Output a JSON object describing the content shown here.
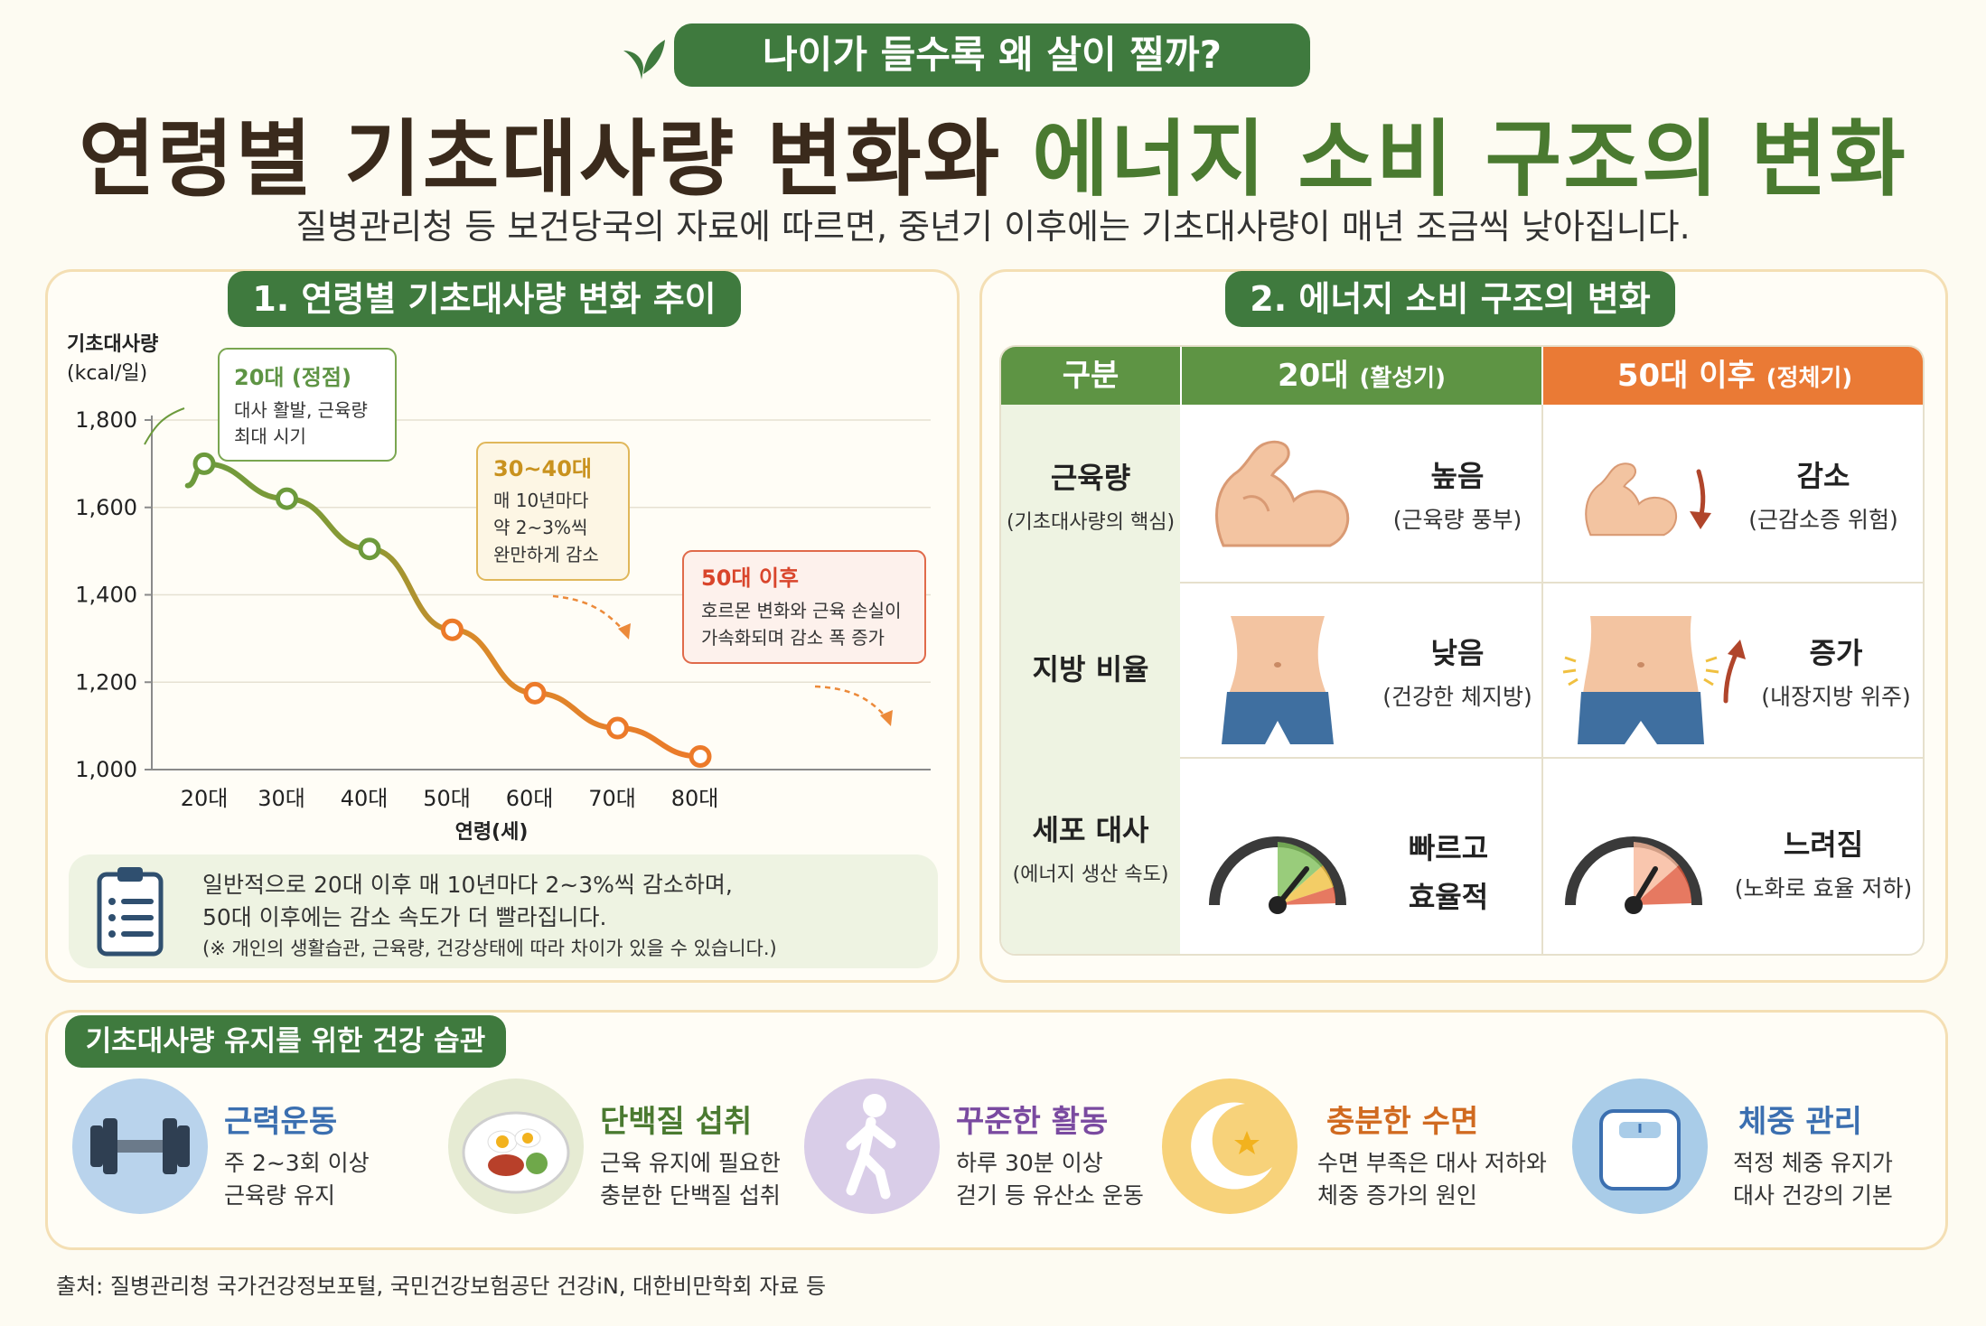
{
  "header": {
    "badge": "나이가 들수록 왜 살이 찔까?",
    "title_main": "연령별 기초대사량 변화와 ",
    "title_accent": "에너지 소비 구조의 변화",
    "subtitle": "질병관리청 등 보건당국의 자료에 따르면, 중년기 이후에는 기초대사량이 매년 조금씩 낮아집니다."
  },
  "section1": {
    "title": "1. 연령별 기초대사량 변화 추이",
    "note": {
      "line1": "일반적으로 20대 이후 매 10년마다 2~3%씩 감소하며,",
      "line2": "50대 이후에는 감소 속도가 더 빨라집니다.",
      "line3": "(※ 개인의 생활습관, 근육량, 건강상태에 따라 차이가 있을 수 있습니다.)"
    }
  },
  "chart_data": {
    "type": "line",
    "ylabel_line1": "기초대사량",
    "ylabel_line2": "(kcal/일)",
    "xlabel": "연령(세)",
    "categories": [
      "20대",
      "30대",
      "40대",
      "50대",
      "60대",
      "70대",
      "80대"
    ],
    "yticks": [
      "1,800",
      "1,600",
      "1,400",
      "1,200",
      "1,000"
    ],
    "ylim": [
      1000,
      1800
    ],
    "grid": true,
    "series": [
      {
        "points": [
          [
            20,
            1700
          ],
          [
            30,
            1620
          ],
          [
            40,
            1505
          ],
          [
            50,
            1320
          ],
          [
            60,
            1175
          ],
          [
            70,
            1095
          ],
          [
            80,
            1030
          ]
        ]
      }
    ],
    "line_start": [
      18,
      1650
    ],
    "colors": {
      "start": "#6c9a3c",
      "end": "#ec7a2a"
    },
    "annotations": [
      {
        "title": "20대 (정점)",
        "lines": [
          "대사 활발, 근육량",
          "최대 시기"
        ],
        "color": "#5e9444"
      },
      {
        "title": "30~40대",
        "lines": [
          "매 10년마다",
          "약 2~3%씩",
          "완만하게 감소"
        ],
        "color": "#c9921e"
      },
      {
        "title": "50대 이후",
        "lines": [
          "호르몬 변화와 근육 손실이",
          "가속화되며 감소 폭 증가"
        ],
        "color": "#d9452b"
      }
    ]
  },
  "section2": {
    "title": "2. 에너지 소비 구조의 변화",
    "headers": {
      "col1": "구분",
      "col2_main": "20대",
      "col2_sub": "(활성기)",
      "col3_main": "50대 이후",
      "col3_sub": "(정체기)"
    },
    "rows": [
      {
        "label": "근육량",
        "label_sub": "(기초대사량의 핵심)",
        "young_main": "높음",
        "young_sub": "(근육량 풍부)",
        "old_main": "감소",
        "old_sub": "(근감소증 위험)",
        "icons": [
          "flexed-arm-icon",
          "down-arrow-icon"
        ]
      },
      {
        "label": "지방 비율",
        "label_sub": "",
        "young_main": "낮음",
        "young_sub": "(건강한 체지방)",
        "old_main": "증가",
        "old_sub": "(내장지방 위주)",
        "icons": [
          "waist-icon",
          "up-arrow-icon"
        ]
      },
      {
        "label": "세포 대사",
        "label_sub": "(에너지 생산 속도)",
        "young_main": "빠르고",
        "young_sub": "효율적",
        "old_main": "느려짐",
        "old_sub": "(노화로 효율 저하)",
        "icons": [
          "speedometer-icon"
        ]
      }
    ]
  },
  "section3": {
    "title": "기초대사량 유지를 위한 건강 습관",
    "habits": [
      {
        "title": "근력운동",
        "line1": "주 2~3회 이상",
        "line2": "근육량 유지",
        "color": "#3b6fb0",
        "icon": "dumbbell-icon",
        "bg": "#b9d3ec"
      },
      {
        "title": "단백질 섭취",
        "line1": "근육 유지에 필요한",
        "line2": "충분한 단백질 섭취",
        "color": "#4a7a30",
        "icon": "protein-plate-icon",
        "bg": "#e6ebd3"
      },
      {
        "title": "꾸준한 활동",
        "line1": "하루 30분 이상",
        "line2": "걷기 등 유산소 운동",
        "color": "#7a4aa0",
        "icon": "walking-person-icon",
        "bg": "#d9cde8"
      },
      {
        "title": "충분한 수면",
        "line1": "수면 부족은 대사 저하와",
        "line2": "체중 증가의 원인",
        "color": "#d06a20",
        "icon": "moon-icon",
        "bg": "#f7d27a"
      },
      {
        "title": "체중 관리",
        "line1": "적정 체중 유지가",
        "line2": "대사 건강의 기본",
        "color": "#3b6fb0",
        "icon": "scale-icon",
        "bg": "#a9cce8"
      }
    ]
  },
  "footer": {
    "source": "출처: 질병관리청 국가건강정보포털, 국민건강보험공단 건강iN, 대한비만학회 자료 등"
  }
}
